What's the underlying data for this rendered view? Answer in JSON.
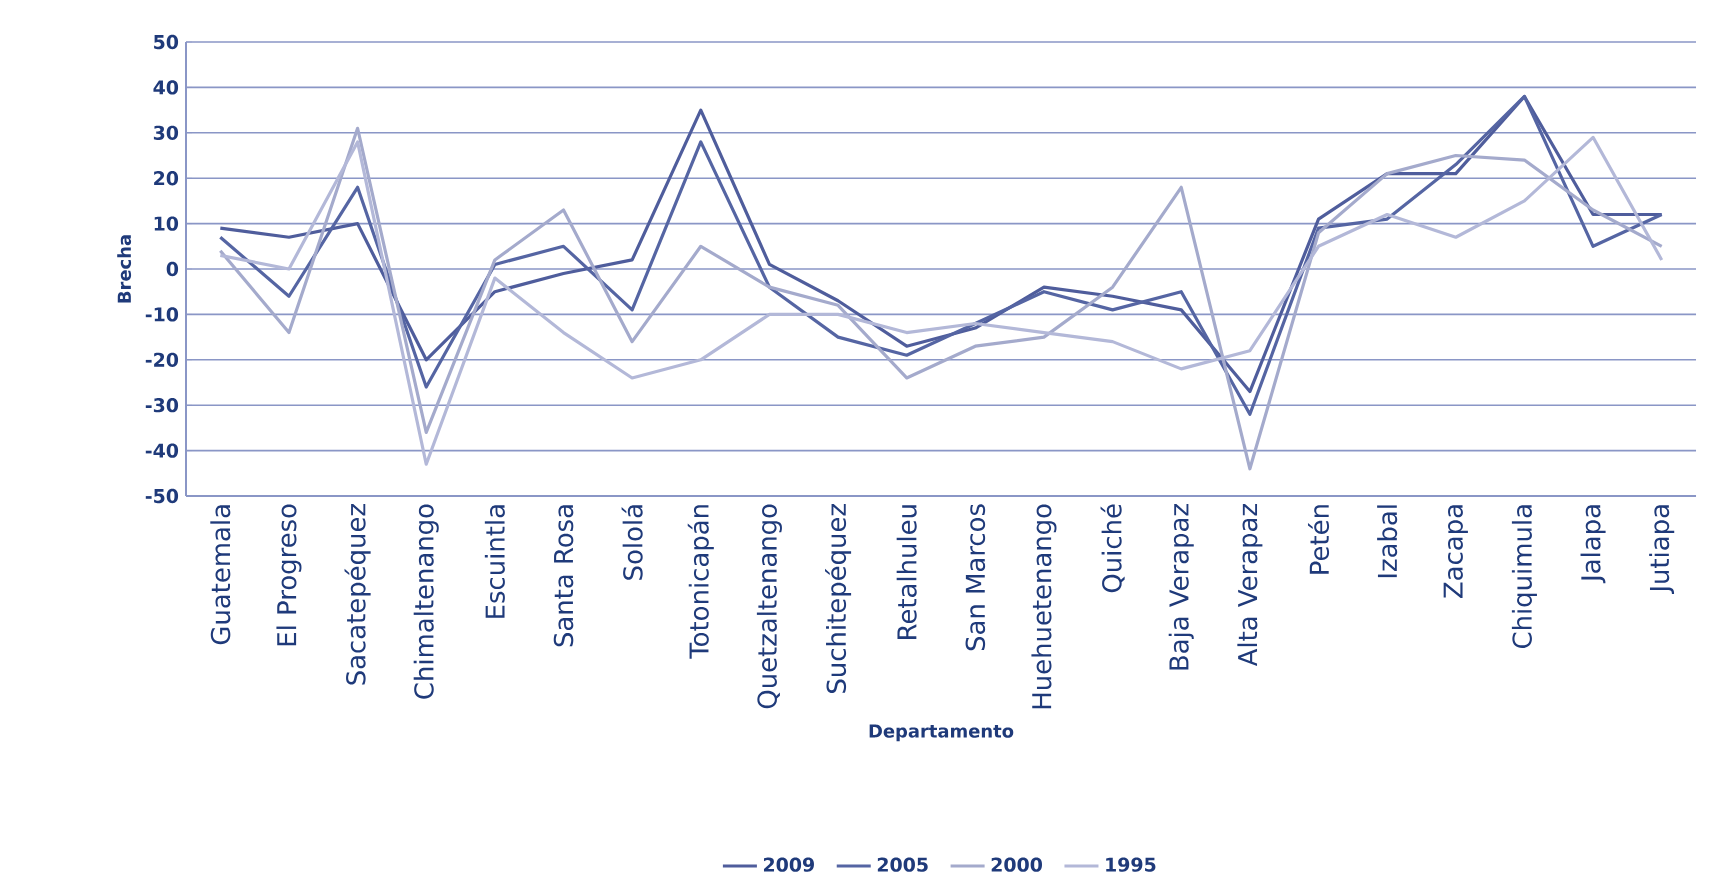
{
  "chart_data": {
    "type": "line",
    "xlabel": "Departamento",
    "ylabel": "Brecha",
    "categories": [
      "Guatemala",
      "El Progreso",
      "Sacatepéquez",
      "Chimaltenango",
      "Escuintla",
      "Santa Rosa",
      "Sololá",
      "Totonicapán",
      "Quetzaltenango",
      "Suchitepéquez",
      "Retalhuleu",
      "San Marcos",
      "Huehuetenango",
      "Quiché",
      "Baja Verapaz",
      "Alta Verapaz",
      "Petén",
      "Izabal",
      "Zacapa",
      "Chiquimula",
      "Jalapa",
      "Jutiapa"
    ],
    "series": [
      {
        "name": "2009",
        "color": "#4f5d9c",
        "values": [
          9,
          7,
          10,
          -20,
          -5,
          -1,
          2,
          35,
          1,
          -7,
          -17,
          -13,
          -4,
          -6,
          -9,
          -27,
          11,
          21,
          21,
          38,
          12,
          12
        ]
      },
      {
        "name": "2005",
        "color": "#5565a3",
        "values": [
          7,
          -6,
          18,
          -26,
          1,
          5,
          -9,
          28,
          -4,
          -15,
          -19,
          -12,
          -5,
          -9,
          -5,
          -32,
          9,
          11,
          23,
          38,
          5,
          12
        ]
      },
      {
        "name": "2000",
        "color": "#a4aacc",
        "values": [
          4,
          -14,
          31,
          -36,
          2,
          13,
          -16,
          5,
          -4,
          -8,
          -24,
          -17,
          -15,
          -4,
          18,
          -44,
          8,
          21,
          25,
          24,
          13,
          5
        ]
      },
      {
        "name": "1995",
        "color": "#b3b8d8",
        "values": [
          3,
          0,
          28,
          -43,
          -2,
          -14,
          -24,
          -20,
          -10,
          -10,
          -14,
          -12,
          -14,
          -16,
          -22,
          -18,
          5,
          12,
          7,
          15,
          29,
          2
        ]
      }
    ],
    "ylim": [
      -50,
      50
    ],
    "yticks": [
      -50,
      -40,
      -30,
      -20,
      -10,
      0,
      10,
      20,
      30,
      40,
      50
    ],
    "grid": "y",
    "legend": "bottom",
    "marker": "none",
    "line_style": "solid"
  }
}
